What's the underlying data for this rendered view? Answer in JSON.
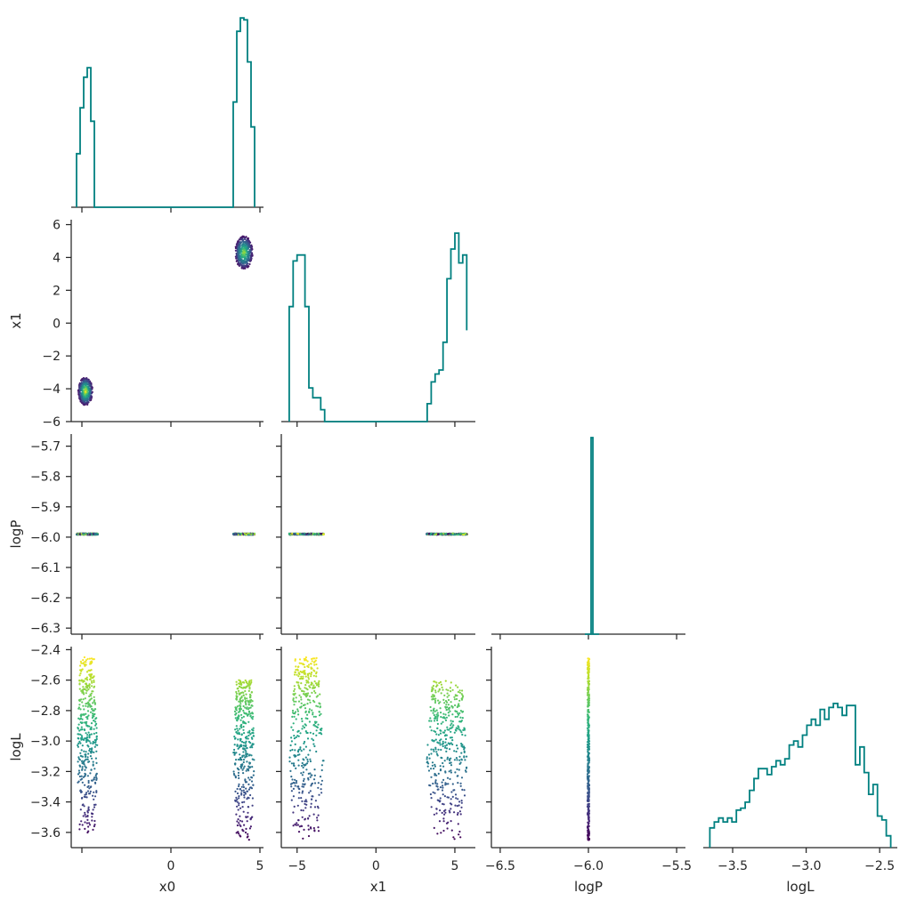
{
  "chart_data": {
    "type": "corner",
    "parameters": [
      "x0",
      "x1",
      "logP",
      "logL"
    ],
    "hist_color": "#008080",
    "colormap": "viridis",
    "color_by": "logL",
    "axes": {
      "x0": {
        "range": [
          -5.6,
          5.2
        ],
        "ticks": [
          0,
          5
        ],
        "tick_labels": [
          "0",
          "5"
        ],
        "extra_ticks": [
          -5
        ],
        "label": "x0"
      },
      "x1": {
        "range": [
          -6.0,
          6.3
        ],
        "ticks": [
          -6,
          -4,
          -2,
          0,
          2,
          4,
          6
        ],
        "tick_labels": [
          "−6",
          "−4",
          "−2",
          "0",
          "2",
          "4",
          "6"
        ],
        "x_ticks": [
          -5,
          0,
          5
        ],
        "x_tick_labels": [
          "−5",
          "0",
          "5"
        ],
        "label": "x1"
      },
      "logP": {
        "range": [
          -6.55,
          -5.45
        ],
        "y_range": [
          -6.32,
          -5.66
        ],
        "ticks": [
          -6.3,
          -6.2,
          -6.1,
          -6.0,
          -5.9,
          -5.8,
          -5.7
        ],
        "tick_labels": [
          "−6.3",
          "−6.2",
          "−6.1",
          "−6.0",
          "−5.9",
          "−5.8",
          "−5.7"
        ],
        "x_ticks": [
          -6.5,
          -6.0,
          -5.5
        ],
        "x_tick_labels": [
          "−6.5",
          "−6.0",
          "−5.5"
        ],
        "label": "logP"
      },
      "logL": {
        "range": [
          -3.7,
          -2.38
        ],
        "ticks": [
          -3.6,
          -3.4,
          -3.2,
          -3.0,
          -2.8,
          -2.6,
          -2.4
        ],
        "tick_labels": [
          "−3.6",
          "−3.4",
          "−3.2",
          "−3.0",
          "−2.8",
          "−2.6",
          "−2.4"
        ],
        "x_ticks": [
          -3.5,
          -3.0,
          -2.5
        ],
        "x_tick_labels": [
          "−3.5",
          "−3.0",
          "−2.5"
        ],
        "label": "logL"
      }
    },
    "histograms": {
      "x0": {
        "edges": [
          -5.3,
          -5.1,
          -4.9,
          -4.7,
          -4.5,
          -4.3,
          -4.1,
          3.5,
          3.7,
          3.9,
          4.1,
          4.3,
          4.5,
          4.7
        ],
        "counts": [
          0.28,
          0.52,
          0.68,
          0.73,
          0.45,
          0,
          0,
          0.55,
          0.92,
          0.99,
          0.98,
          0.76,
          0.42
        ]
      },
      "x1": {
        "edges": [
          -5.5,
          -5.25,
          -5.0,
          -4.75,
          -4.5,
          -4.25,
          -4.0,
          -3.75,
          -3.5,
          -3.25,
          3.25,
          3.5,
          3.75,
          4.0,
          4.25,
          4.5,
          4.75,
          5.0,
          5.25,
          5.5,
          5.75
        ],
        "counts": [
          0.58,
          0.81,
          0.84,
          0.84,
          0.58,
          0.17,
          0.12,
          0.12,
          0.06,
          0,
          0.09,
          0.2,
          0.24,
          0.26,
          0.4,
          0.72,
          0.87,
          0.95,
          0.8,
          0.84,
          0.46
        ]
      },
      "logP": {
        "edges": [
          -6.02,
          -5.985,
          -5.975,
          -5.94
        ],
        "counts": [
          0,
          1.0,
          0
        ]
      },
      "logL": {
        "edges": [
          -3.655,
          -3.625,
          -3.595,
          -3.565,
          -3.535,
          -3.505,
          -3.475,
          -3.445,
          -3.415,
          -3.385,
          -3.355,
          -3.325,
          -3.295,
          -3.265,
          -3.235,
          -3.205,
          -3.175,
          -3.145,
          -3.115,
          -3.085,
          -3.055,
          -3.025,
          -2.995,
          -2.965,
          -2.935,
          -2.905,
          -2.875,
          -2.845,
          -2.815,
          -2.785,
          -2.755,
          -2.725,
          -2.695,
          -2.665,
          -2.635,
          -2.605,
          -2.575,
          -2.545,
          -2.515,
          -2.485,
          -2.455,
          -2.425
        ],
        "counts": [
          0.1,
          0.13,
          0.15,
          0.13,
          0.15,
          0.13,
          0.19,
          0.2,
          0.23,
          0.29,
          0.35,
          0.4,
          0.4,
          0.37,
          0.41,
          0.44,
          0.42,
          0.45,
          0.52,
          0.54,
          0.51,
          0.57,
          0.62,
          0.65,
          0.62,
          0.7,
          0.65,
          0.71,
          0.73,
          0.71,
          0.67,
          0.72,
          0.72,
          0.42,
          0.51,
          0.38,
          0.27,
          0.32,
          0.16,
          0.14,
          0.06
        ]
      }
    },
    "scatter_clusters": {
      "x1_vs_x0": [
        {
          "x": [
            -5.2,
            -4.4
          ],
          "y": [
            -5.0,
            -3.3
          ],
          "logL_range": [
            -3.6,
            -2.45
          ]
        },
        {
          "x": [
            3.6,
            4.6
          ],
          "y": [
            3.3,
            5.3
          ],
          "logL_range": [
            -3.6,
            -2.6
          ]
        }
      ],
      "logP_vs_x0": [
        {
          "x": [
            -5.3,
            -4.1
          ],
          "y": -5.99
        },
        {
          "x": [
            3.5,
            4.7
          ],
          "y": -5.99
        }
      ],
      "logP_vs_x1": [
        {
          "x": [
            -5.5,
            -3.3
          ],
          "y": -5.99
        },
        {
          "x": [
            3.2,
            5.8
          ],
          "y": -5.99
        }
      ],
      "logL_vs_x0": [
        {
          "x": [
            -5.3,
            -4.1
          ],
          "y": [
            -3.65,
            -2.45
          ]
        },
        {
          "x": [
            3.5,
            4.7
          ],
          "y": [
            -3.65,
            -2.6
          ]
        }
      ],
      "logL_vs_x1": [
        {
          "x": [
            -5.5,
            -3.3
          ],
          "y": [
            -3.65,
            -2.45
          ]
        },
        {
          "x": [
            3.2,
            5.8
          ],
          "y": [
            -3.65,
            -2.6
          ]
        }
      ],
      "logL_vs_logP": [
        {
          "x": -6.0,
          "y": [
            -3.65,
            -2.45
          ]
        }
      ]
    }
  }
}
